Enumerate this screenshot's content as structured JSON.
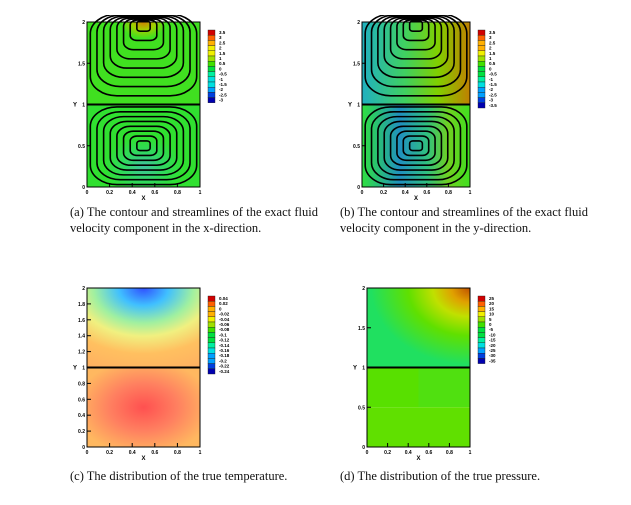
{
  "figures": [
    {
      "id": "a",
      "caption": "(a) The contour and streamlines of the exact fluid velocity component in the x-direction.",
      "xlabel": "X",
      "ylabel": "Y",
      "xticks": [
        "0",
        "0.2",
        "0.4",
        "0.6",
        "0.8",
        "1"
      ],
      "yticks": [
        "0",
        "0.5",
        "1",
        "1.5",
        "2"
      ],
      "colorbar": [
        "3.5",
        "3",
        "2.5",
        "2",
        "1.5",
        "1",
        "0.5",
        "0",
        "-0.5",
        "-1",
        "-1.5",
        "-2",
        "-2.5",
        "-3"
      ],
      "streamlines": true
    },
    {
      "id": "b",
      "caption": "(b) The contour and streamlines of the exact fluid velocity component in the y-direction.",
      "xlabel": "X",
      "ylabel": "Y",
      "xticks": [
        "0",
        "0.2",
        "0.4",
        "0.6",
        "0.8",
        "1"
      ],
      "yticks": [
        "0",
        "0.5",
        "1",
        "1.5",
        "2"
      ],
      "colorbar": [
        "3.5",
        "3",
        "2.5",
        "2",
        "1.5",
        "1",
        "0.5",
        "0",
        "-0.5",
        "-1",
        "-1.5",
        "-2",
        "-2.5",
        "-3",
        "-3.5"
      ],
      "streamlines": true
    },
    {
      "id": "c",
      "caption": "(c) The distribution of the true temperature.",
      "xlabel": "X",
      "ylabel": "Y",
      "xticks": [
        "0",
        "0.2",
        "0.4",
        "0.6",
        "0.8",
        "1"
      ],
      "yticks": [
        "0",
        "0.2",
        "0.4",
        "0.6",
        "0.8",
        "1",
        "1.2",
        "1.4",
        "1.6",
        "1.8",
        "2"
      ],
      "colorbar": [
        "0.04",
        "0.02",
        "0",
        "-0.02",
        "-0.04",
        "-0.06",
        "-0.08",
        "-0.1",
        "-0.12",
        "-0.14",
        "-0.16",
        "-0.18",
        "-0.2",
        "-0.22",
        "-0.24"
      ],
      "streamlines": false
    },
    {
      "id": "d",
      "caption": "(d) The distribution of the true pressure.",
      "xlabel": "X",
      "ylabel": "Y",
      "xticks": [
        "0",
        "0.2",
        "0.4",
        "0.6",
        "0.8",
        "1"
      ],
      "yticks": [
        "0",
        "0.5",
        "1",
        "1.5",
        "2"
      ],
      "colorbar": [
        "25",
        "20",
        "15",
        "10",
        "5",
        "0",
        "-5",
        "-10",
        "-15",
        "-20",
        "-25",
        "-30",
        "-35"
      ],
      "streamlines": false
    }
  ],
  "colors": {
    "rainbow": [
      "#d00000",
      "#ff6000",
      "#ffb000",
      "#f0f000",
      "#a0e000",
      "#40e000",
      "#00e040",
      "#00f0a0",
      "#00e0e0",
      "#00a0ff",
      "#0040e0",
      "#0000b0"
    ]
  }
}
